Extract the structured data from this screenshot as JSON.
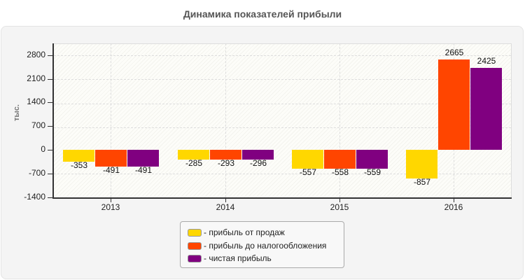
{
  "title": "Динамика показателей прибыли",
  "chart_data": {
    "type": "bar",
    "title": "Динамика показателей прибыли",
    "xlabel": "",
    "ylabel": "тыс.",
    "categories": [
      "2013",
      "2014",
      "2015",
      "2016"
    ],
    "series": [
      {
        "name": "прибыль от продаж",
        "color": "#FFD700",
        "values": [
          -353,
          -285,
          -557,
          -857
        ]
      },
      {
        "name": "прибыль до налогообложения",
        "color": "#FF4500",
        "values": [
          -491,
          -293,
          -558,
          2665
        ]
      },
      {
        "name": "чистая прибыль",
        "color": "#800080",
        "values": [
          -491,
          -296,
          -559,
          2425
        ]
      }
    ],
    "ylim": [
      -1400,
      3150
    ],
    "yticks": [
      "2800",
      "2100",
      "1400",
      "700",
      "0",
      "-700",
      "-1400"
    ],
    "grid": true,
    "legend_position": "bottom"
  },
  "legend": [
    {
      "label": "- прибыль от продаж",
      "color": "#FFD700"
    },
    {
      "label": "- прибыль до налогообложения",
      "color": "#FF4500"
    },
    {
      "label": "- чистая прибыль",
      "color": "#800080"
    }
  ]
}
